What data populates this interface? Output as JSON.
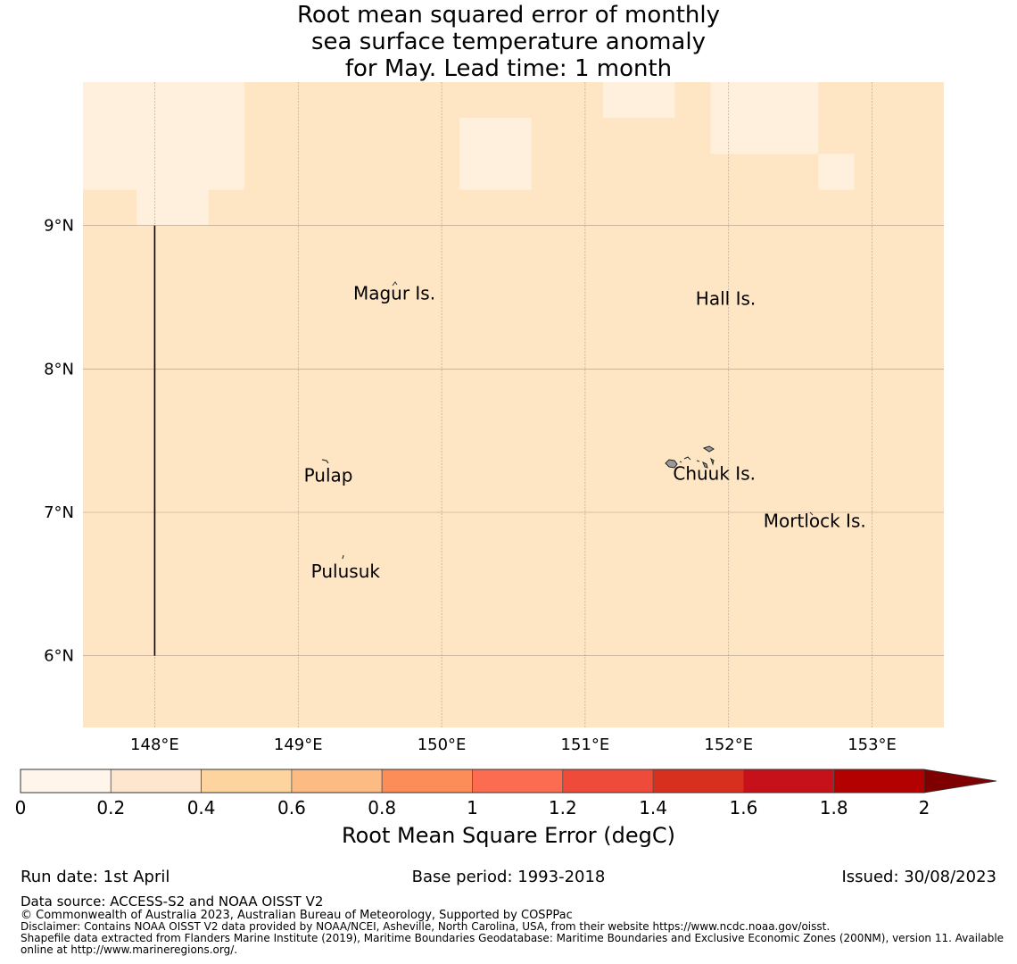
{
  "title": {
    "line1": "Root mean squared error of monthly",
    "line2": "sea surface temperature anomaly",
    "line3": "for May. Lead time: 1 month"
  },
  "map": {
    "lon_range": [
      147.5,
      153.5
    ],
    "lat_range": [
      5.5,
      10.0
    ],
    "background_color": "#fee6c5",
    "lat_ticks": [
      {
        "value": 9,
        "label": "9°N"
      },
      {
        "value": 8,
        "label": "8°N"
      },
      {
        "value": 7,
        "label": "7°N"
      },
      {
        "value": 6,
        "label": "6°N"
      }
    ],
    "lon_ticks": [
      {
        "value": 148,
        "label": "148°E"
      },
      {
        "value": 149,
        "label": "149°E"
      },
      {
        "value": 150,
        "label": "150°E"
      },
      {
        "value": 151,
        "label": "151°E"
      },
      {
        "value": 152,
        "label": "152°E"
      },
      {
        "value": 153,
        "label": "153°E"
      }
    ],
    "low_error_cells": [
      {
        "lon0": 147.5,
        "lon1": 148.625,
        "lat0": 9.25,
        "lat1": 10.0
      },
      {
        "lon0": 147.875,
        "lon1": 148.375,
        "lat0": 9.0,
        "lat1": 9.25
      },
      {
        "lon0": 150.125,
        "lon1": 150.625,
        "lat0": 9.25,
        "lat1": 9.75
      },
      {
        "lon0": 151.125,
        "lon1": 151.625,
        "lat0": 9.75,
        "lat1": 10.0
      },
      {
        "lon0": 151.875,
        "lon1": 152.625,
        "lat0": 9.5,
        "lat1": 10.0
      },
      {
        "lon0": 152.625,
        "lon1": 152.875,
        "lat0": 9.25,
        "lat1": 9.5
      }
    ],
    "low_error_color": "#fff0dd",
    "boundary_line": {
      "lon": 148.0,
      "lat0": 6.0,
      "lat1": 9.0
    },
    "places": [
      {
        "name": "Magur Is.",
        "lon": 149.67,
        "lat": 8.52
      },
      {
        "name": "Hall Is.",
        "lon": 151.98,
        "lat": 8.48
      },
      {
        "name": "Pulap",
        "lon": 149.21,
        "lat": 7.25
      },
      {
        "name": "Chuuk Is.",
        "lon": 151.9,
        "lat": 7.26
      },
      {
        "name": "Mortlock Is.",
        "lon": 152.6,
        "lat": 6.93
      },
      {
        "name": "Pulusuk",
        "lon": 149.33,
        "lat": 6.58
      }
    ]
  },
  "colorbar": {
    "bounds": [
      0,
      0.2,
      0.4,
      0.6,
      0.8,
      1,
      1.2,
      1.4,
      1.6,
      1.8,
      2
    ],
    "tick_labels": [
      "0",
      "0.2",
      "0.4",
      "0.6",
      "0.8",
      "1",
      "1.2",
      "1.4",
      "1.6",
      "1.8",
      "2"
    ],
    "colors": [
      "#fff5eb",
      "#fee6ce",
      "#fdd49e",
      "#fdbb84",
      "#fc8d59",
      "#fc6c50",
      "#ef4b3b",
      "#d7301f",
      "#c6111b",
      "#b30000"
    ],
    "extend_color": "#7f0000",
    "label": "Root Mean Square Error (degC)"
  },
  "footer": {
    "run_date": "Run date: 1st April",
    "base_period": "Base period: 1993-2018",
    "issued": "Issued: 30/08/2023",
    "data_source": "Data source: ACCESS-S2 and NOAA OISST V2",
    "copyright": "© Commonwealth of Australia 2023, Australian Bureau of Meteorology, Supported by COSPPac",
    "disclaimer": "Disclaimer: Contains NOAA OISST V2 data provided by NOAA/NCEI, Asheville, North Carolina, USA, from their website https://www.ncdc.noaa.gov/oisst.",
    "shapefile_line1": "Shapefile data extracted from Flanders Marine Institute (2019), Maritime Boundaries Geodatabase: Maritime Boundaries and Exclusive Economic Zones (200NM), version 11. Available",
    "shapefile_line2": "online at http://www.marineregions.org/."
  }
}
